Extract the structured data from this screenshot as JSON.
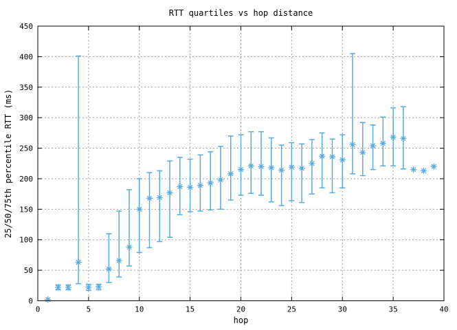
{
  "colors": {
    "series": "#58abdf",
    "grid": "#9e9e9e",
    "border": "#000000",
    "text": "#000000",
    "background": "#ffffff"
  },
  "chart_data": {
    "type": "scatter",
    "subtype": "quartile-errorbars",
    "title": "RTT quartiles vs hop distance",
    "xlabel": "hop",
    "ylabel": "25/50/75th percentile RTT (ms)",
    "xlim": [
      0,
      40
    ],
    "ylim": [
      0,
      450
    ],
    "xticks": [
      0,
      5,
      10,
      15,
      20,
      25,
      30,
      35,
      40
    ],
    "yticks": [
      0,
      50,
      100,
      150,
      200,
      250,
      300,
      350,
      400,
      450
    ],
    "grid": true,
    "legend": "none",
    "marker": "asterisk",
    "series_name": "25/50/75th percentile RTT",
    "points": [
      {
        "hop": 1,
        "q1": 2,
        "median": 2,
        "q3": 2
      },
      {
        "hop": 2,
        "q1": 18,
        "median": 22,
        "q3": 26
      },
      {
        "hop": 3,
        "q1": 18,
        "median": 22,
        "q3": 26
      },
      {
        "hop": 4,
        "q1": 28,
        "median": 63,
        "q3": 401
      },
      {
        "hop": 5,
        "q1": 17,
        "median": 22,
        "q3": 27
      },
      {
        "hop": 6,
        "q1": 18,
        "median": 23,
        "q3": 27
      },
      {
        "hop": 7,
        "q1": 30,
        "median": 52,
        "q3": 110
      },
      {
        "hop": 8,
        "q1": 39,
        "median": 66,
        "q3": 147
      },
      {
        "hop": 9,
        "q1": 57,
        "median": 88,
        "q3": 182
      },
      {
        "hop": 10,
        "q1": 79,
        "median": 150,
        "q3": 200
      },
      {
        "hop": 11,
        "q1": 87,
        "median": 168,
        "q3": 210
      },
      {
        "hop": 12,
        "q1": 97,
        "median": 169,
        "q3": 213
      },
      {
        "hop": 13,
        "q1": 104,
        "median": 177,
        "q3": 229
      },
      {
        "hop": 14,
        "q1": 141,
        "median": 187,
        "q3": 235
      },
      {
        "hop": 15,
        "q1": 146,
        "median": 186,
        "q3": 232
      },
      {
        "hop": 16,
        "q1": 147,
        "median": 189,
        "q3": 239
      },
      {
        "hop": 17,
        "q1": 149,
        "median": 193,
        "q3": 244
      },
      {
        "hop": 18,
        "q1": 150,
        "median": 198,
        "q3": 253
      },
      {
        "hop": 19,
        "q1": 165,
        "median": 208,
        "q3": 270
      },
      {
        "hop": 20,
        "q1": 173,
        "median": 215,
        "q3": 272
      },
      {
        "hop": 21,
        "q1": 176,
        "median": 221,
        "q3": 277
      },
      {
        "hop": 22,
        "q1": 173,
        "median": 220,
        "q3": 277
      },
      {
        "hop": 23,
        "q1": 162,
        "median": 218,
        "q3": 267
      },
      {
        "hop": 24,
        "q1": 156,
        "median": 214,
        "q3": 255
      },
      {
        "hop": 25,
        "q1": 164,
        "median": 219,
        "q3": 259
      },
      {
        "hop": 26,
        "q1": 161,
        "median": 217,
        "q3": 257
      },
      {
        "hop": 27,
        "q1": 175,
        "median": 225,
        "q3": 264
      },
      {
        "hop": 28,
        "q1": 185,
        "median": 237,
        "q3": 275
      },
      {
        "hop": 29,
        "q1": 177,
        "median": 236,
        "q3": 265
      },
      {
        "hop": 30,
        "q1": 185,
        "median": 231,
        "q3": 272
      },
      {
        "hop": 31,
        "q1": 208,
        "median": 256,
        "q3": 405
      },
      {
        "hop": 32,
        "q1": 205,
        "median": 243,
        "q3": 292
      },
      {
        "hop": 33,
        "q1": 215,
        "median": 254,
        "q3": 288
      },
      {
        "hop": 34,
        "q1": 221,
        "median": 258,
        "q3": 301
      },
      {
        "hop": 35,
        "q1": 221,
        "median": 268,
        "q3": 316
      },
      {
        "hop": 36,
        "q1": 216,
        "median": 266,
        "q3": 318
      },
      {
        "hop": 37,
        "q1": 215,
        "median": 215,
        "q3": 215
      },
      {
        "hop": 38,
        "q1": 213,
        "median": 213,
        "q3": 213
      },
      {
        "hop": 39,
        "q1": 220,
        "median": 220,
        "q3": 220
      }
    ]
  }
}
